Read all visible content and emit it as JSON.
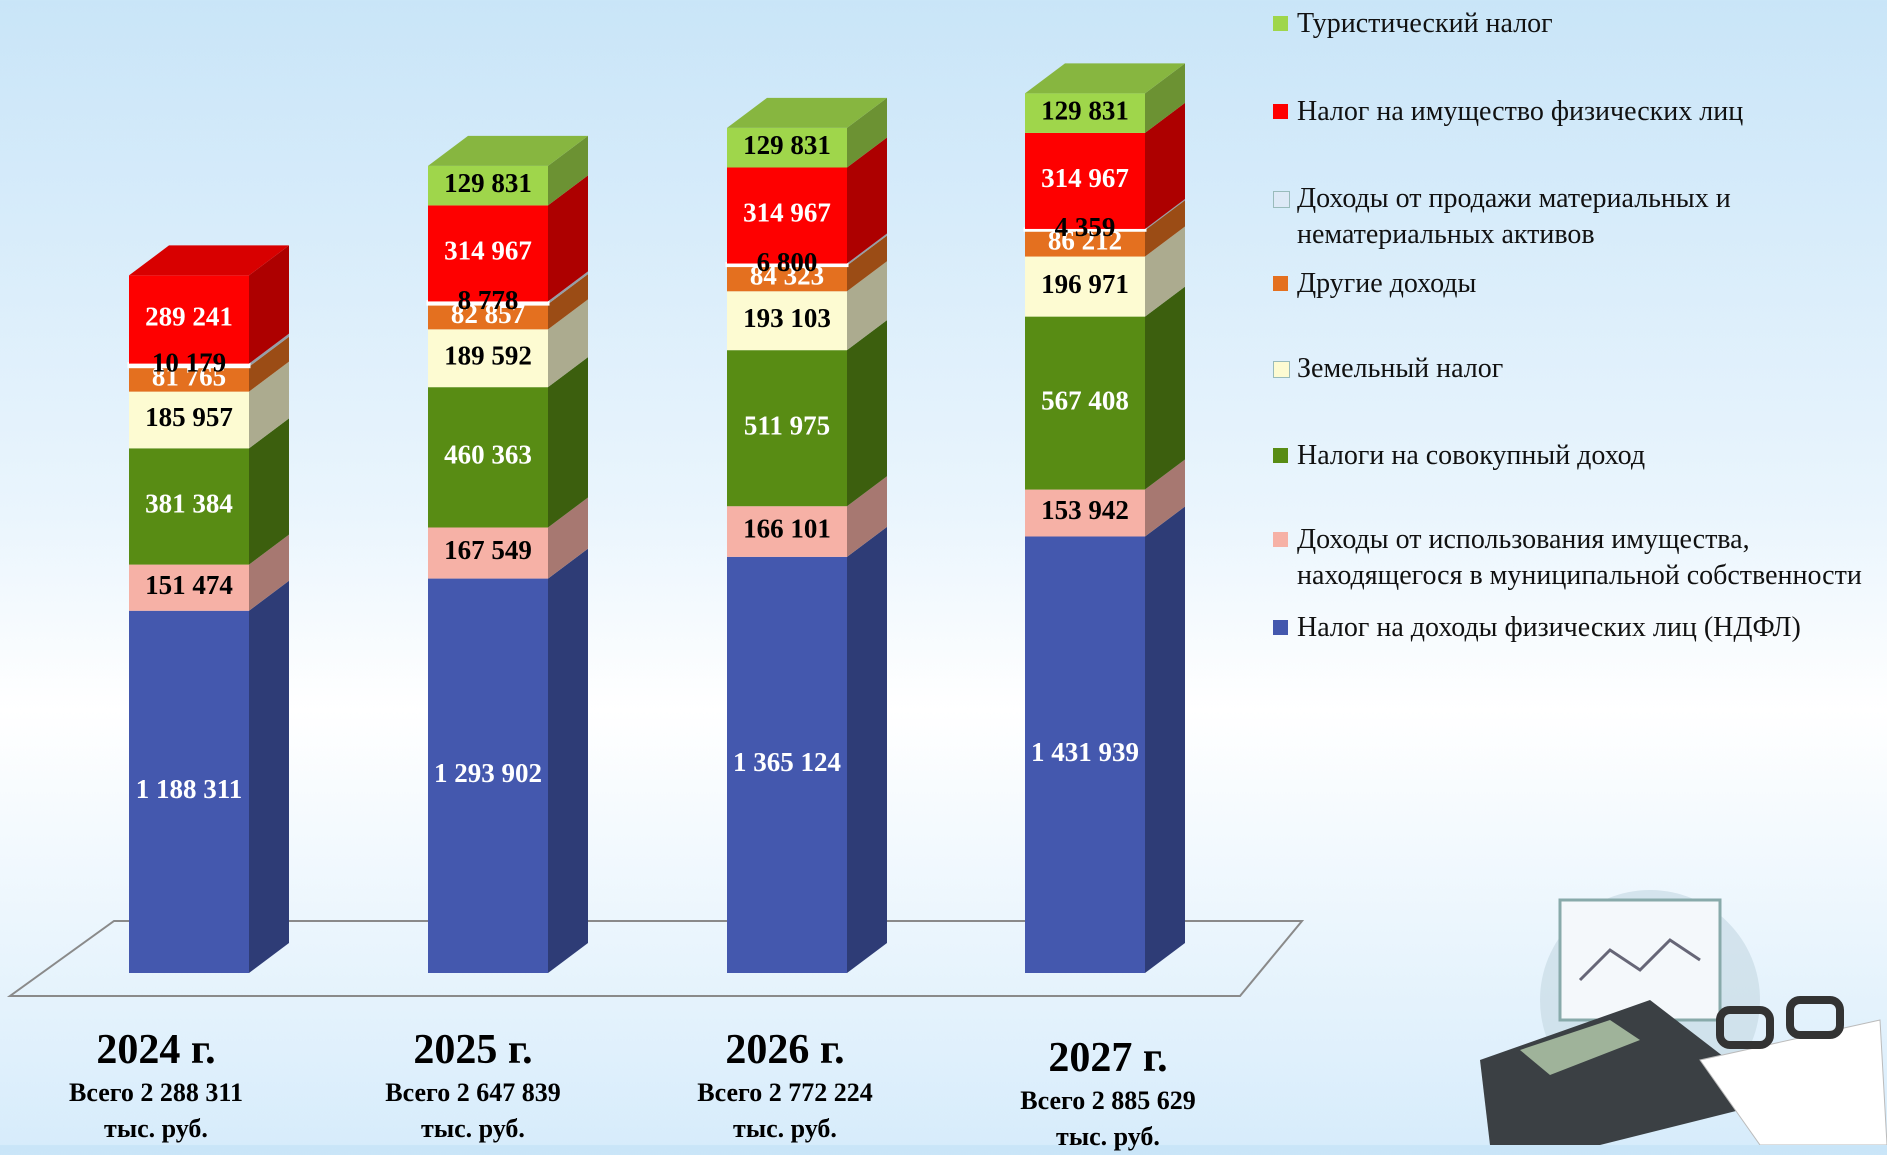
{
  "chart_data": {
    "type": "stacked-bar-3d",
    "categories": [
      "2024 г.",
      "2025 г.",
      "2026 г.",
      "2027 г."
    ],
    "total_labels": [
      "Всего  2  288 311",
      "Всего 2 647 839",
      "Всего 2 772 224",
      "Всего 2 885 629"
    ],
    "unit": "тыс. руб.",
    "ylim": [
      0,
      3100000
    ],
    "series": [
      {
        "name": "Налог на доходы физических лиц (НДФЛ)",
        "color": "#4458ae",
        "values": [
          1188311,
          1293902,
          1365124,
          1431939
        ],
        "value_labels": [
          "1 188 311",
          "1 293 902",
          "1 365 124",
          "1 431 939"
        ]
      },
      {
        "name": "Доходы от использования имущества, находящегося в муниципальной собственности",
        "color": "#f6b1a6",
        "values": [
          151474,
          167549,
          166101,
          153942
        ],
        "value_labels": [
          "151 474",
          "167 549",
          "166 101",
          "153 942"
        ]
      },
      {
        "name": "Налоги на совокупный доход",
        "color": "#588c14",
        "values": [
          381384,
          460363,
          511975,
          567408
        ],
        "value_labels": [
          "381 384",
          "460 363",
          "511 975",
          "567 408"
        ]
      },
      {
        "name": "Земельный налог",
        "color": "#fdfbd2",
        "values": [
          185957,
          189592,
          193103,
          196971
        ],
        "value_labels": [
          "185 957",
          "189 592",
          "193 103",
          "196 971"
        ]
      },
      {
        "name": "Другие доходы",
        "color": "#e4701f",
        "values": [
          81765,
          82857,
          84323,
          86212
        ],
        "value_labels": [
          "81 765",
          "82 857",
          "84 323",
          "86 212"
        ]
      },
      {
        "name": "Доходы от продажи материальных и нематериальных активов",
        "color": "#dde9f6",
        "values": [
          10179,
          8778,
          6800,
          4359
        ],
        "value_labels": [
          "10 179",
          "8 778",
          "6 800",
          "4 359"
        ]
      },
      {
        "name": "Налог на имущество физических лиц",
        "color": "#fe0000",
        "values": [
          289241,
          314967,
          314967,
          314967
        ],
        "value_labels": [
          "289 241",
          "314 967",
          "314 967",
          "314 967"
        ]
      },
      {
        "name": "Туристический налог",
        "color": "#9fd64b",
        "values": [
          null,
          129831,
          129831,
          129831
        ],
        "value_labels": [
          null,
          "129 831",
          "129 831",
          "129 831"
        ]
      }
    ]
  }
}
